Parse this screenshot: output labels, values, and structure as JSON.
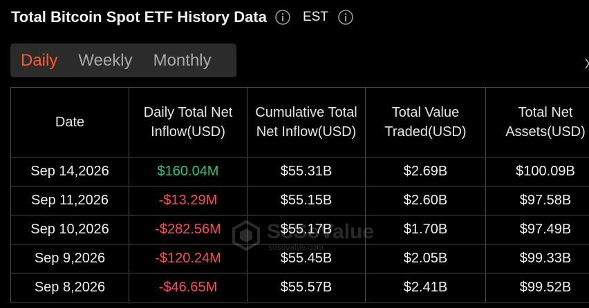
{
  "header": {
    "title": "Total Bitcoin Spot ETF History Data",
    "timezone": "EST",
    "title_info_icon": "info-circle-icon",
    "timezone_info_icon": "info-circle-icon"
  },
  "tabs": [
    {
      "label": "Daily",
      "active": true
    },
    {
      "label": "Weekly",
      "active": false
    },
    {
      "label": "Monthly",
      "active": false
    }
  ],
  "table": {
    "columns": [
      "Date",
      "Daily Total Net Inflow(USD)",
      "Cumulative Total Net Inflow(USD)",
      "Total Value Traded(USD)",
      "Total Net Assets(USD)"
    ],
    "rows": [
      {
        "date": "Sep 14,2026",
        "daily_net_inflow": "$160.04M",
        "cumulative_net_inflow": "$55.31B",
        "total_value_traded": "$2.69B",
        "total_net_assets": "$100.09B"
      },
      {
        "date": "Sep 11,2026",
        "daily_net_inflow": "-$13.29M",
        "cumulative_net_inflow": "$55.15B",
        "total_value_traded": "$2.60B",
        "total_net_assets": "$97.58B"
      },
      {
        "date": "Sep 10,2026",
        "daily_net_inflow": "-$282.56M",
        "cumulative_net_inflow": "$55.17B",
        "total_value_traded": "$1.70B",
        "total_net_assets": "$97.49B"
      },
      {
        "date": "Sep 9,2026",
        "daily_net_inflow": "-$120.24M",
        "cumulative_net_inflow": "$55.45B",
        "total_value_traded": "$2.05B",
        "total_net_assets": "$99.33B"
      },
      {
        "date": "Sep 8,2026",
        "daily_net_inflow": "-$46.65M",
        "cumulative_net_inflow": "$55.57B",
        "total_value_traded": "$2.41B",
        "total_net_assets": "$99.52B"
      }
    ]
  },
  "watermark": {
    "name": "SoSoValue",
    "url": "sosovalue.com"
  },
  "colors": {
    "background": "#000000",
    "active_tab": "#ff5a2a",
    "positive": "#28c76f",
    "negative": "#ff4d4d",
    "border": "#4a4a4a"
  }
}
